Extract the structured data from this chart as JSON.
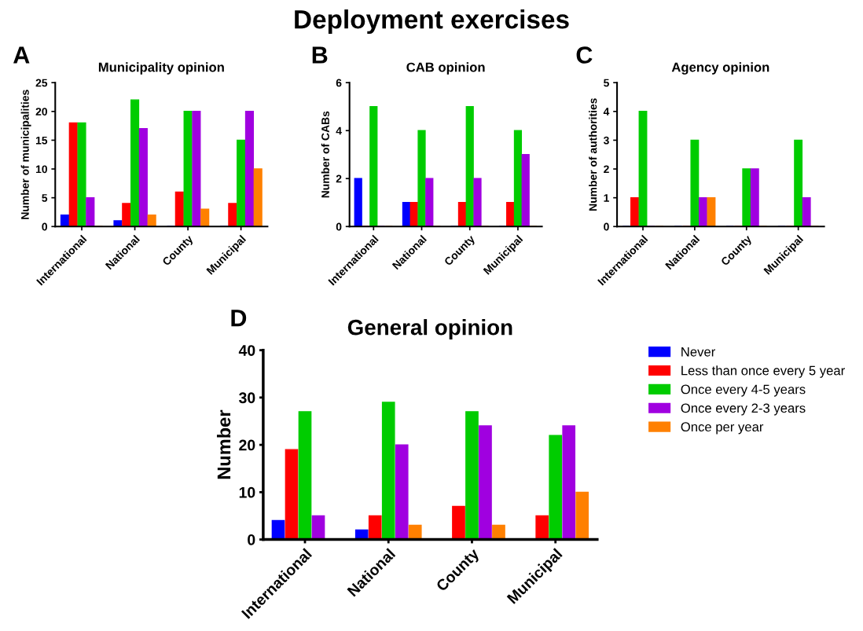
{
  "chart_data": [
    {
      "type": "bar",
      "title": "Municipality opinion",
      "ylabel": "Number of municipalities",
      "annotations": [
        "Deployment exercises",
        "A"
      ],
      "categories": [
        "International",
        "National",
        "County",
        "Municipal"
      ],
      "ylim": [
        0,
        25
      ],
      "yticks": [
        0,
        5,
        10,
        15,
        20,
        25
      ],
      "grid": false,
      "legend": false,
      "series": [
        {
          "color": "#0000ff",
          "values": [
            2,
            1,
            0,
            0
          ]
        },
        {
          "color": "#ff0000",
          "values": [
            18,
            4,
            6,
            4
          ]
        },
        {
          "color": "#00cc00",
          "values": [
            18,
            22,
            20,
            15
          ]
        },
        {
          "color": "#a000e0",
          "values": [
            5,
            17,
            20,
            20
          ]
        },
        {
          "color": "#ff8000",
          "values": [
            0,
            2,
            3,
            10
          ]
        }
      ]
    },
    {
      "type": "bar",
      "title": "CAB opinion",
      "ylabel": "Number of CABs",
      "annotations": [
        "B"
      ],
      "categories": [
        "International",
        "National",
        "County",
        "Municipal"
      ],
      "ylim": [
        0,
        6
      ],
      "yticks": [
        0,
        2,
        4,
        6
      ],
      "grid": false,
      "legend": false,
      "series": [
        {
          "color": "#0000ff",
          "values": [
            2,
            1,
            0,
            0
          ]
        },
        {
          "color": "#ff0000",
          "values": [
            0,
            1,
            1,
            1
          ]
        },
        {
          "color": "#00cc00",
          "values": [
            5,
            4,
            5,
            4
          ]
        },
        {
          "color": "#a000e0",
          "values": [
            0,
            2,
            2,
            3
          ]
        },
        {
          "color": "#ff8000",
          "values": [
            0,
            0,
            0,
            0
          ]
        }
      ]
    },
    {
      "type": "bar",
      "title": "Agency opinion",
      "ylabel": "Number of authorities",
      "annotations": [
        "C"
      ],
      "categories": [
        "International",
        "National",
        "County",
        "Municipal"
      ],
      "ylim": [
        0,
        5
      ],
      "yticks": [
        0,
        1,
        2,
        3,
        4,
        5
      ],
      "grid": false,
      "legend": false,
      "series": [
        {
          "color": "#0000ff",
          "values": [
            0,
            0,
            0,
            0
          ]
        },
        {
          "color": "#ff0000",
          "values": [
            1,
            0,
            0,
            0
          ]
        },
        {
          "color": "#00cc00",
          "values": [
            4,
            3,
            2,
            3
          ]
        },
        {
          "color": "#a000e0",
          "values": [
            0,
            1,
            2,
            1
          ]
        },
        {
          "color": "#ff8000",
          "values": [
            0,
            1,
            0,
            0
          ]
        }
      ]
    },
    {
      "type": "bar",
      "title": "General opinion",
      "ylabel": "Number",
      "annotations": [
        "D"
      ],
      "categories": [
        "International",
        "National",
        "County",
        "Municipal"
      ],
      "ylim": [
        0,
        40
      ],
      "yticks": [
        0,
        10,
        20,
        30,
        40
      ],
      "grid": false,
      "legend": "right",
      "series": [
        {
          "name": "Never",
          "color": "#0000ff",
          "values": [
            4,
            2,
            0,
            0
          ]
        },
        {
          "name": "Less than once every 5 year",
          "color": "#ff0000",
          "values": [
            19,
            5,
            7,
            5
          ]
        },
        {
          "name": "Once every 4-5 years",
          "color": "#00cc00",
          "values": [
            27,
            29,
            27,
            22
          ]
        },
        {
          "name": "Once every 2-3 years",
          "color": "#a000e0",
          "values": [
            5,
            20,
            24,
            24
          ]
        },
        {
          "name": "Once per year",
          "color": "#ff8000",
          "values": [
            0,
            3,
            3,
            10
          ]
        }
      ]
    }
  ]
}
